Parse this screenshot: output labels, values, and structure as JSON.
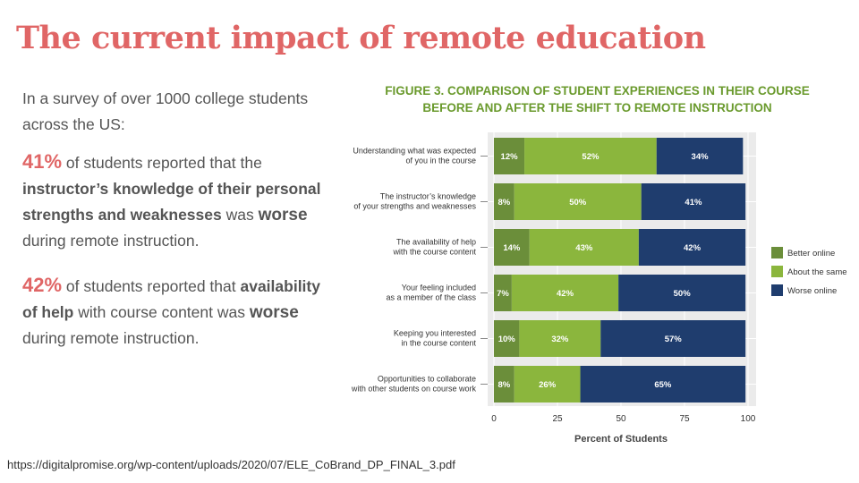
{
  "slide": {
    "title": "The current impact of remote education",
    "intro": "In a survey of over 1000 college students across the US:",
    "stat1": {
      "pct": "41%",
      "t1": " of students reported that the ",
      "b1": "instructor’s knowledge of their personal strengths and weaknesses",
      "t2": " was ",
      "w": "worse",
      "t3": " during remote instruction."
    },
    "stat2": {
      "pct": "42%",
      "t1": " of students reported that ",
      "b1": "availability of help",
      "t2": " with course content was ",
      "w": "worse",
      "t3": " during remote instruction."
    },
    "source": "https://digitalpromise.org/wp-content/uploads/2020/07/ELE_CoBrand_DP_FINAL_3.pdf"
  },
  "chart_data": {
    "type": "bar",
    "orientation": "horizontal",
    "stacked": true,
    "title_line1": "FIGURE 3. COMPARISON OF STUDENT EXPERIENCES IN THEIR COURSE",
    "title_line2": "BEFORE AND AFTER THE SHIFT TO REMOTE INSTRUCTION",
    "xlabel": "Percent of Students",
    "xlim": [
      0,
      100
    ],
    "xticks": [
      "0",
      "25",
      "50",
      "75",
      "100"
    ],
    "grid": true,
    "legend_position": "right",
    "categories": [
      [
        "Understanding what was expected",
        "of you in the course"
      ],
      [
        "The instructor’s knowledge",
        "of your strengths and weaknesses"
      ],
      [
        "The availability of help",
        "with the course content"
      ],
      [
        "Your feeling included",
        "as a member of the class"
      ],
      [
        "Keeping you interested",
        "in the course content"
      ],
      [
        "Opportunities to collaborate",
        "with other students on course work"
      ]
    ],
    "series": [
      {
        "name": "Better online",
        "color": "#6b8e3a",
        "values": [
          12,
          8,
          14,
          7,
          10,
          8
        ],
        "labels": [
          "12%",
          "8%",
          "14%",
          "7%",
          "10%",
          "8%"
        ]
      },
      {
        "name": "About the same",
        "color": "#8bb63d",
        "values": [
          52,
          50,
          43,
          42,
          32,
          26
        ],
        "labels": [
          "52%",
          "50%",
          "43%",
          "42%",
          "32%",
          "26%"
        ]
      },
      {
        "name": "Worse online",
        "color": "#1f3d6e",
        "values": [
          34,
          41,
          42,
          50,
          57,
          65
        ],
        "labels": [
          "34%",
          "41%",
          "42%",
          "50%",
          "57%",
          "65%"
        ]
      }
    ]
  }
}
